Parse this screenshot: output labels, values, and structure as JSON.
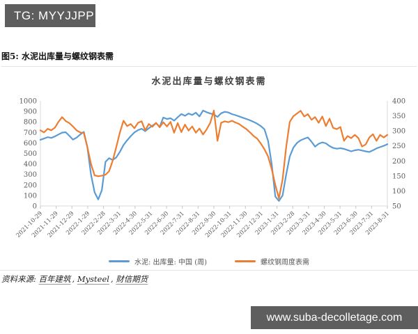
{
  "header": {
    "tg_badge": "TG: MYYJJPP"
  },
  "figure_caption": "图5: 水泥出库量与螺纹钢表需",
  "chart_data": {
    "type": "line",
    "title": "水泥出库量与螺纹钢表需",
    "grid": false,
    "legend_position": "bottom",
    "left_axis": {
      "min": 0,
      "max": 1000,
      "step": 100
    },
    "right_axis": {
      "min": 50,
      "max": 400,
      "step": 50
    },
    "x_tick_labels": [
      "2021-10-29",
      "2021-11-29",
      "2021-12-29",
      "2022-1-29",
      "2022-2-28",
      "2022-3-31",
      "2022-4-30",
      "2022-5-31",
      "2022-6-30",
      "2022-7-31",
      "2022-8-31",
      "2022-9-30",
      "2022-10-31",
      "2022-11-30",
      "2022-12-31",
      "2023-1-31",
      "2023-2-28",
      "2023-3-31",
      "2023-4-30",
      "2023-5-31",
      "2023-6-30",
      "2023-7-31",
      "2023-8-31"
    ],
    "x_note": "weekly data from 2021-10-29 to 2023-8-31",
    "series": [
      {
        "name": "水泥: 出库量: 中国 (周)",
        "axis": "left",
        "color": "#5B9BD5",
        "values": [
          630,
          642,
          655,
          648,
          662,
          680,
          698,
          702,
          668,
          632,
          650,
          680,
          705,
          560,
          300,
          130,
          62,
          150,
          420,
          455,
          438,
          462,
          515,
          580,
          625,
          665,
          700,
          722,
          735,
          712,
          740,
          765,
          788,
          752,
          842,
          828,
          835,
          812,
          845,
          875,
          858,
          880,
          866,
          888,
          852,
          908,
          892,
          880,
          870,
          848,
          882,
          896,
          890,
          874,
          864,
          852,
          840,
          828,
          815,
          800,
          782,
          760,
          730,
          620,
          400,
          90,
          48,
          100,
          300,
          470,
          555,
          600,
          625,
          640,
          652,
          612,
          565,
          592,
          605,
          596,
          570,
          552,
          545,
          550,
          543,
          532,
          520,
          530,
          535,
          528,
          520,
          514,
          530,
          548,
          560,
          572,
          588
        ]
      },
      {
        "name": "螺纹钢周度表需",
        "axis": "right",
        "color": "#ED7D31",
        "values": [
          302,
          295,
          307,
          302,
          311,
          330,
          346,
          333,
          326,
          315,
          302,
          295,
          293,
          246,
          190,
          152,
          149,
          151,
          154,
          166,
          201,
          246,
          295,
          334,
          316,
          323,
          309,
          327,
          332,
          302,
          323,
          314,
          327,
          312,
          329,
          315,
          330,
          294,
          326,
          296,
          321,
          301,
          315,
          294,
          308,
          288,
          305,
          327,
          368,
          267,
          327,
          332,
          329,
          334,
          328,
          323,
          314,
          306,
          295,
          283,
          274,
          258,
          239,
          215,
          173,
          120,
          75,
          138,
          246,
          330,
          349,
          358,
          367,
          348,
          356,
          337,
          346,
          327,
          348,
          316,
          341,
          310,
          306,
          313,
          267,
          283,
          276,
          287,
          276,
          248,
          255,
          278,
          289,
          267,
          287,
          278,
          287
        ]
      }
    ]
  },
  "source_note": {
    "prefix": "资料来源:",
    "separator": ",",
    "items": [
      "百年建筑",
      "Mysteel",
      "财信期货"
    ]
  },
  "footer": {
    "website": "www.suba-decolletage.com"
  },
  "colors": {
    "badge_bg": "#5e5e5e",
    "cement_line": "#5B9BD5",
    "rebar_line": "#ED7D31"
  }
}
